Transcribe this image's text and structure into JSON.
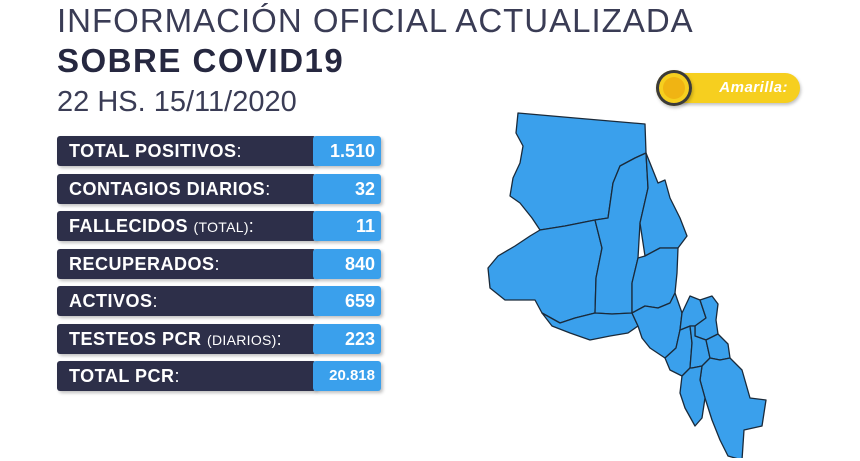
{
  "header": {
    "line1": "INFORMACIÓN OFICIAL ACTUALIZADA",
    "line2": "SOBRE COVID19",
    "date": "22 HS. 15/11/2020"
  },
  "stats": [
    {
      "label": "TOTAL POSITIVOS",
      "qualifier": "",
      "value": "1.510"
    },
    {
      "label": "CONTAGIOS DIARIOS",
      "qualifier": "",
      "value": "32"
    },
    {
      "label": "FALLECIDOS",
      "qualifier": "(TOTAL)",
      "value": "11"
    },
    {
      "label": "RECUPERADOS",
      "qualifier": "",
      "value": "840"
    },
    {
      "label": "ACTIVOS",
      "qualifier": "",
      "value": "659"
    },
    {
      "label": "TESTEOS PCR",
      "qualifier": "(DIARIOS)",
      "value": "223"
    },
    {
      "label": "TOTAL PCR",
      "qualifier": "",
      "value": "20.818"
    }
  ],
  "status_badge": {
    "label": "Amarilla:",
    "color": "#f6cf1f"
  },
  "colors": {
    "label_bg": "#2d2f49",
    "value_bg": "#3aa0ec",
    "map_fill": "#3aa0ec",
    "map_stroke": "#1a2a3a"
  },
  "map": {
    "icon": "province-map-icon"
  }
}
